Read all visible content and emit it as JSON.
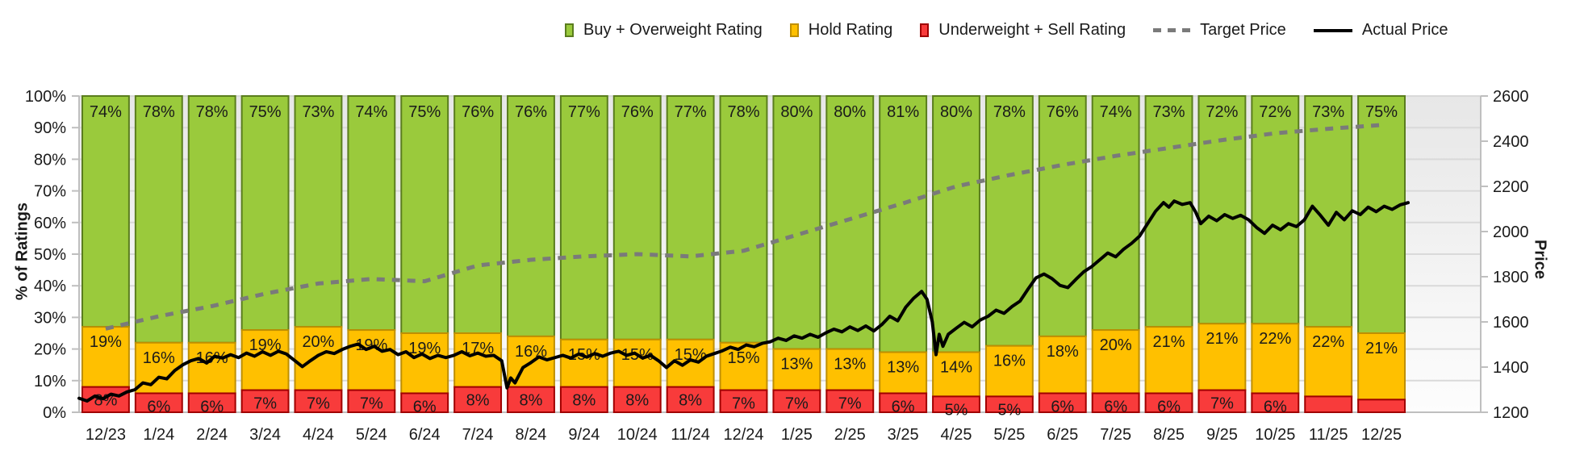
{
  "legend": {
    "items": [
      {
        "label": "Buy + Overweight Rating",
        "swatch": "bar",
        "color": "#9aca3c",
        "border": "#5a7d1e"
      },
      {
        "label": "Hold Rating",
        "swatch": "bar",
        "color": "#ffc000",
        "border": "#bf8f00"
      },
      {
        "label": "Underweight + Sell Rating",
        "swatch": "bar",
        "color": "#f83b3b",
        "border": "#a00000"
      },
      {
        "label": "Target Price",
        "swatch": "dashed-line",
        "color": "#7a7a7a"
      },
      {
        "label": "Actual Price",
        "swatch": "solid-line",
        "color": "#000000"
      }
    ]
  },
  "axes": {
    "left": {
      "title": "% of Ratings",
      "ticks": [
        "0%",
        "10%",
        "20%",
        "30%",
        "40%",
        "50%",
        "60%",
        "70%",
        "80%",
        "90%",
        "100%"
      ]
    },
    "right": {
      "title": "Price",
      "ticks": [
        "1200",
        "1400",
        "1600",
        "1800",
        "2000",
        "2200",
        "2400",
        "2600"
      ]
    }
  },
  "annotations": {
    "target_price": "2471.62",
    "actual_price": "2127.79"
  },
  "chart_data": {
    "type": "combo-stacked-bar-and-line",
    "categories": [
      "12/23",
      "1/24",
      "2/24",
      "3/24",
      "4/24",
      "5/24",
      "6/24",
      "7/24",
      "8/24",
      "9/24",
      "10/24",
      "11/24",
      "12/24",
      "1/25",
      "2/25",
      "3/25",
      "4/25",
      "5/25",
      "6/25",
      "7/25",
      "8/25",
      "9/25",
      "10/25",
      "11/25",
      "12/25"
    ],
    "ylim_left": [
      0,
      100
    ],
    "ylim_right": [
      1200,
      2600
    ],
    "grid": true,
    "legend_position": "top",
    "series": [
      {
        "name": "Buy + Overweight Rating",
        "type": "bar",
        "axis": "left",
        "color": "#9aca3c",
        "border": "#5a7d1e",
        "values": [
          74,
          78,
          78,
          75,
          73,
          74,
          75,
          76,
          76,
          77,
          76,
          77,
          78,
          80,
          80,
          81,
          80,
          78,
          76,
          74,
          73,
          72,
          72,
          73,
          75
        ]
      },
      {
        "name": "Hold Rating",
        "type": "bar",
        "axis": "left",
        "color": "#ffc000",
        "border": "#bf8f00",
        "values": [
          19,
          16,
          16,
          19,
          20,
          19,
          19,
          17,
          16,
          15,
          15,
          15,
          15,
          13,
          13,
          13,
          14,
          16,
          18,
          20,
          21,
          21,
          22,
          22,
          21
        ]
      },
      {
        "name": "Underweight + Sell Rating",
        "type": "bar",
        "axis": "left",
        "color": "#f83b3b",
        "border": "#a00000",
        "values": [
          8,
          6,
          6,
          7,
          7,
          7,
          6,
          8,
          8,
          8,
          8,
          8,
          7,
          7,
          7,
          6,
          5,
          5,
          6,
          6,
          6,
          7,
          6,
          5,
          4
        ],
        "labels_shown": [
          true,
          true,
          true,
          true,
          true,
          true,
          true,
          true,
          true,
          true,
          true,
          true,
          true,
          true,
          true,
          true,
          true,
          true,
          true,
          true,
          true,
          true,
          true,
          false,
          false
        ]
      },
      {
        "name": "Target Price",
        "type": "line-dashed",
        "axis": "right",
        "color": "#7a7a7a",
        "values": [
          1570,
          1625,
          1670,
          1725,
          1770,
          1790,
          1780,
          1850,
          1875,
          1890,
          1900,
          1890,
          1915,
          1985,
          2055,
          2125,
          2200,
          2250,
          2295,
          2335,
          2370,
          2405,
          2435,
          2455,
          2471.62
        ]
      },
      {
        "name": "Actual Price",
        "type": "line",
        "axis": "right",
        "color": "#000000",
        "points": [
          [
            0,
            1262
          ],
          [
            0.15,
            1250
          ],
          [
            0.3,
            1272
          ],
          [
            0.45,
            1260
          ],
          [
            0.6,
            1280
          ],
          [
            0.75,
            1272
          ],
          [
            0.9,
            1290
          ],
          [
            1.05,
            1300
          ],
          [
            1.2,
            1330
          ],
          [
            1.35,
            1322
          ],
          [
            1.5,
            1355
          ],
          [
            1.65,
            1348
          ],
          [
            1.8,
            1385
          ],
          [
            1.95,
            1410
          ],
          [
            2.1,
            1428
          ],
          [
            2.25,
            1438
          ],
          [
            2.4,
            1418
          ],
          [
            2.55,
            1448
          ],
          [
            2.7,
            1440
          ],
          [
            2.85,
            1455
          ],
          [
            3.0,
            1442
          ],
          [
            3.15,
            1462
          ],
          [
            3.3,
            1448
          ],
          [
            3.45,
            1468
          ],
          [
            3.6,
            1452
          ],
          [
            3.75,
            1470
          ],
          [
            3.9,
            1458
          ],
          [
            4.05,
            1430
          ],
          [
            4.2,
            1402
          ],
          [
            4.35,
            1428
          ],
          [
            4.5,
            1452
          ],
          [
            4.65,
            1468
          ],
          [
            4.8,
            1460
          ],
          [
            4.95,
            1478
          ],
          [
            5.1,
            1492
          ],
          [
            5.25,
            1502
          ],
          [
            5.4,
            1478
          ],
          [
            5.55,
            1492
          ],
          [
            5.7,
            1470
          ],
          [
            5.85,
            1478
          ],
          [
            6.0,
            1455
          ],
          [
            6.15,
            1468
          ],
          [
            6.3,
            1442
          ],
          [
            6.45,
            1458
          ],
          [
            6.6,
            1438
          ],
          [
            6.75,
            1452
          ],
          [
            6.9,
            1442
          ],
          [
            7.05,
            1452
          ],
          [
            7.2,
            1468
          ],
          [
            7.35,
            1450
          ],
          [
            7.5,
            1462
          ],
          [
            7.65,
            1448
          ],
          [
            7.8,
            1452
          ],
          [
            7.95,
            1428
          ],
          [
            8.05,
            1308
          ],
          [
            8.12,
            1352
          ],
          [
            8.2,
            1330
          ],
          [
            8.35,
            1398
          ],
          [
            8.5,
            1420
          ],
          [
            8.65,
            1445
          ],
          [
            8.8,
            1432
          ],
          [
            8.95,
            1442
          ],
          [
            9.1,
            1452
          ],
          [
            9.25,
            1440
          ],
          [
            9.4,
            1458
          ],
          [
            9.55,
            1444
          ],
          [
            9.7,
            1460
          ],
          [
            9.85,
            1448
          ],
          [
            10.0,
            1462
          ],
          [
            10.15,
            1470
          ],
          [
            10.3,
            1452
          ],
          [
            10.45,
            1462
          ],
          [
            10.6,
            1440
          ],
          [
            10.75,
            1452
          ],
          [
            10.9,
            1428
          ],
          [
            11.05,
            1398
          ],
          [
            11.2,
            1428
          ],
          [
            11.35,
            1408
          ],
          [
            11.5,
            1432
          ],
          [
            11.65,
            1422
          ],
          [
            11.8,
            1448
          ],
          [
            11.95,
            1460
          ],
          [
            12.1,
            1472
          ],
          [
            12.25,
            1488
          ],
          [
            12.4,
            1478
          ],
          [
            12.55,
            1498
          ],
          [
            12.7,
            1490
          ],
          [
            12.85,
            1505
          ],
          [
            13.0,
            1512
          ],
          [
            13.15,
            1528
          ],
          [
            13.3,
            1518
          ],
          [
            13.45,
            1538
          ],
          [
            13.6,
            1528
          ],
          [
            13.75,
            1545
          ],
          [
            13.9,
            1532
          ],
          [
            14.05,
            1552
          ],
          [
            14.2,
            1568
          ],
          [
            14.35,
            1556
          ],
          [
            14.5,
            1578
          ],
          [
            14.65,
            1562
          ],
          [
            14.8,
            1582
          ],
          [
            14.95,
            1560
          ],
          [
            15.1,
            1588
          ],
          [
            15.25,
            1625
          ],
          [
            15.4,
            1605
          ],
          [
            15.55,
            1665
          ],
          [
            15.7,
            1705
          ],
          [
            15.85,
            1735
          ],
          [
            15.95,
            1700
          ],
          [
            16.05,
            1600
          ],
          [
            16.12,
            1455
          ],
          [
            16.18,
            1545
          ],
          [
            16.25,
            1492
          ],
          [
            16.35,
            1545
          ],
          [
            16.5,
            1572
          ],
          [
            16.65,
            1598
          ],
          [
            16.8,
            1578
          ],
          [
            16.95,
            1608
          ],
          [
            17.1,
            1625
          ],
          [
            17.25,
            1652
          ],
          [
            17.4,
            1638
          ],
          [
            17.55,
            1668
          ],
          [
            17.7,
            1692
          ],
          [
            17.85,
            1745
          ],
          [
            18.0,
            1795
          ],
          [
            18.15,
            1812
          ],
          [
            18.3,
            1792
          ],
          [
            18.45,
            1762
          ],
          [
            18.6,
            1752
          ],
          [
            18.75,
            1788
          ],
          [
            18.9,
            1822
          ],
          [
            19.05,
            1845
          ],
          [
            19.2,
            1875
          ],
          [
            19.35,
            1905
          ],
          [
            19.5,
            1888
          ],
          [
            19.65,
            1922
          ],
          [
            19.8,
            1948
          ],
          [
            19.95,
            1980
          ],
          [
            20.1,
            2035
          ],
          [
            20.25,
            2090
          ],
          [
            20.4,
            2128
          ],
          [
            20.5,
            2108
          ],
          [
            20.6,
            2135
          ],
          [
            20.75,
            2120
          ],
          [
            20.9,
            2128
          ],
          [
            21.0,
            2088
          ],
          [
            21.1,
            2035
          ],
          [
            21.25,
            2068
          ],
          [
            21.4,
            2048
          ],
          [
            21.55,
            2075
          ],
          [
            21.7,
            2058
          ],
          [
            21.85,
            2072
          ],
          [
            22.0,
            2052
          ],
          [
            22.15,
            2018
          ],
          [
            22.3,
            1992
          ],
          [
            22.45,
            2028
          ],
          [
            22.6,
            2008
          ],
          [
            22.75,
            2035
          ],
          [
            22.9,
            2022
          ],
          [
            23.05,
            2052
          ],
          [
            23.2,
            2112
          ],
          [
            23.35,
            2072
          ],
          [
            23.5,
            2028
          ],
          [
            23.65,
            2085
          ],
          [
            23.8,
            2052
          ],
          [
            23.95,
            2092
          ],
          [
            24.1,
            2075
          ],
          [
            24.25,
            2108
          ],
          [
            24.4,
            2088
          ],
          [
            24.55,
            2112
          ],
          [
            24.7,
            2098
          ],
          [
            24.85,
            2118
          ],
          [
            25.0,
            2127.79
          ]
        ]
      }
    ],
    "end_labels": {
      "target_price": 2471.62,
      "actual_price": 2127.79
    }
  }
}
